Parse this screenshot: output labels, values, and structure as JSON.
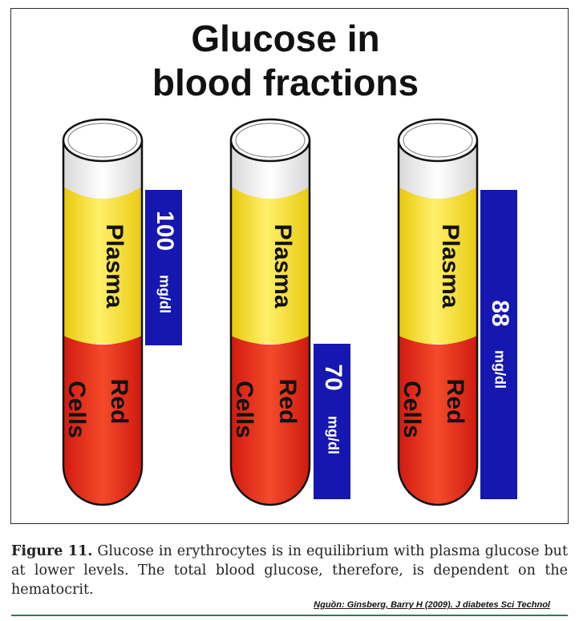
{
  "title_line1": "Glucose in",
  "title_line2": "blood fractions",
  "tubes": [
    {
      "plasma_label": "Plasma",
      "cells_label_top": "Red",
      "cells_label_bottom": "Cells",
      "value": "100",
      "unit": "mg/dl"
    },
    {
      "plasma_label": "Plasma",
      "cells_label_top": "Red",
      "cells_label_bottom": "Cells",
      "value": "70",
      "unit": "mg/dl"
    },
    {
      "plasma_label": "Plasma",
      "cells_label_top": "Red",
      "cells_label_bottom": "Cells",
      "value": "88",
      "unit": "mg/dl"
    }
  ],
  "caption": {
    "label": "Figure 11.",
    "text": "Glucose in erythrocytes is in equilibrium with plasma glucose but at lower levels. The total blood glucose, therefore, is dependent on the hematocrit."
  },
  "source": "Nguồn: Ginsberg, Barry H (2009). J diabetes Sci Technol",
  "colors": {
    "plasma": "#f6e21a",
    "red_cells": "#e0261a",
    "value_box": "#1616b0",
    "tube_glass": "#ebebeb"
  }
}
